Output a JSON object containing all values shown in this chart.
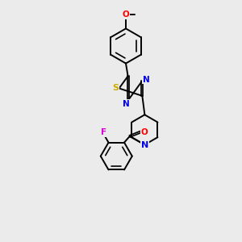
{
  "background_color": "#ebebeb",
  "bond_color": "#000000",
  "bond_width": 1.4,
  "dbo": 0.055,
  "atom_colors": {
    "N": "#0000ee",
    "S": "#ccaa00",
    "O": "#ff0000",
    "F": "#dd00dd",
    "C": "#000000"
  },
  "figsize": [
    3.0,
    3.0
  ],
  "dpi": 100
}
